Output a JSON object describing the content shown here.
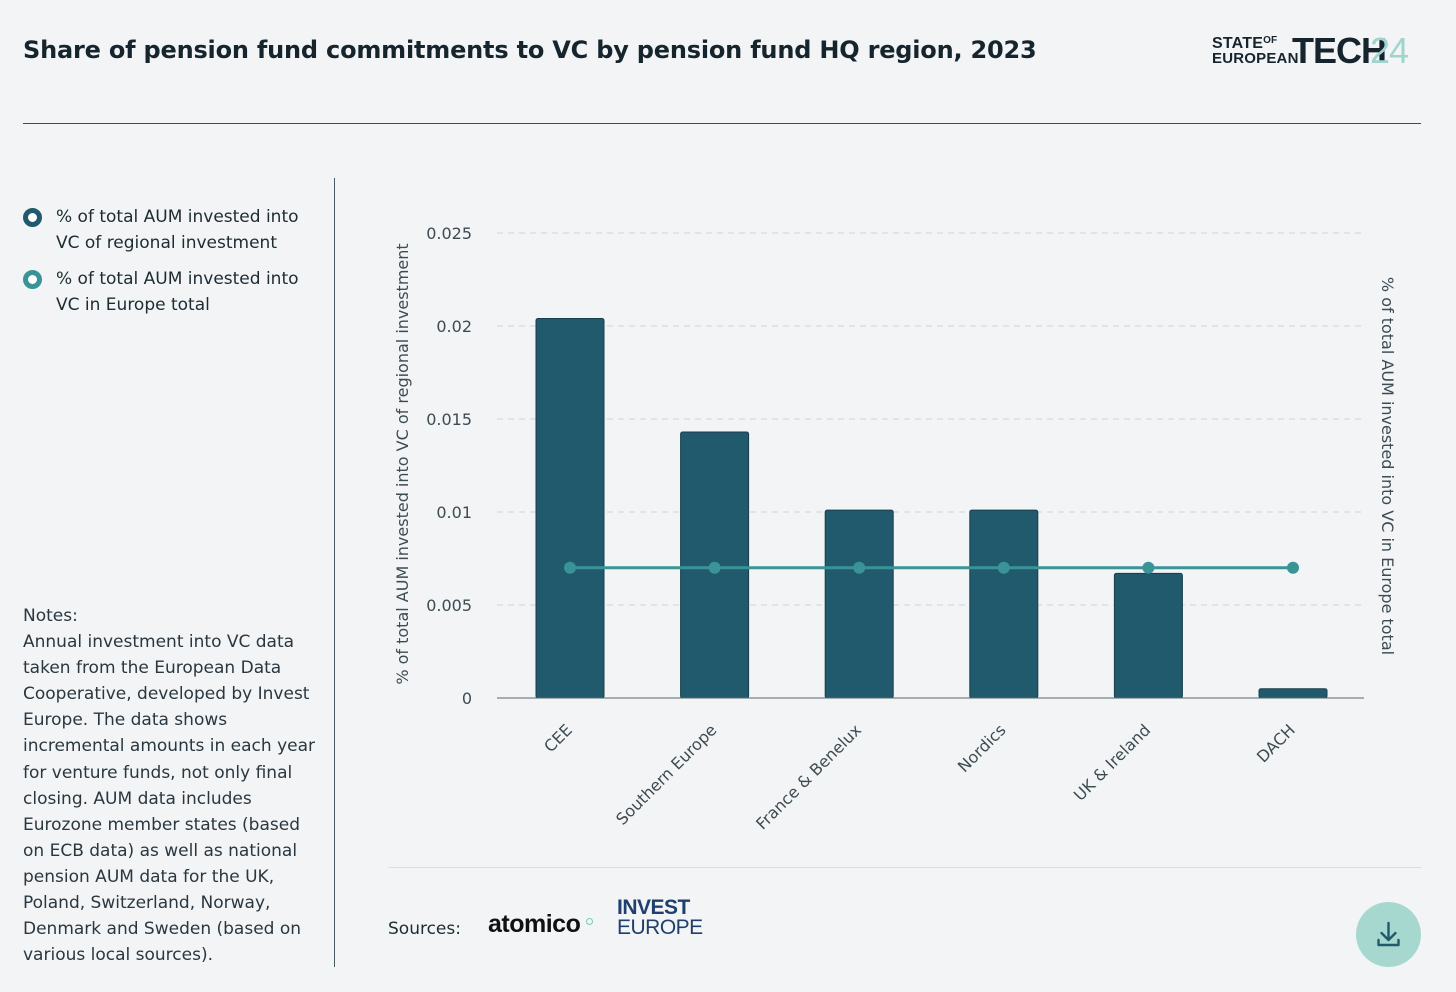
{
  "header": {
    "title": "Share of pension fund commitments to VC by pension fund HQ region, 2023",
    "brand_state": "STATE",
    "brand_of": "OF",
    "brand_european": "EUROPEAN",
    "brand_tech": "TECH",
    "brand_year": "24"
  },
  "legend": {
    "items": [
      {
        "label": "% of total AUM invested into VC of regional investment",
        "color": "#215a6c"
      },
      {
        "label": "% of total AUM invested into VC in Europe total",
        "color": "#3a9396"
      }
    ]
  },
  "notes": {
    "heading": "Notes:",
    "text": "Annual investment into VC data taken from the European Data Cooperative, developed by Invest Europe. The data shows incremental amounts in each year for venture funds, not only final closing. AUM data includes Eurozone member states (based on ECB data) as well as national pension AUM data for the UK, Poland, Switzerland, Norway, Denmark and Sweden (based on various local sources)."
  },
  "chart_data": {
    "type": "bar",
    "categories": [
      "CEE",
      "Southern Europe",
      "France & Benelux",
      "Nordics",
      "UK & Ireland",
      "DACH"
    ],
    "series": [
      {
        "name": "% of total AUM invested into VC of regional investment",
        "type": "bar",
        "color": "#215a6c",
        "values": [
          0.0204,
          0.0143,
          0.0101,
          0.0101,
          0.0067,
          0.0005
        ]
      },
      {
        "name": "% of total AUM invested into VC in Europe total",
        "type": "line",
        "color": "#3a9396",
        "values": [
          0.007,
          0.007,
          0.007,
          0.007,
          0.007,
          0.007
        ]
      }
    ],
    "y_ticks": [
      "0",
      "0.005",
      "0.01",
      "0.015",
      "0.02",
      "0.025"
    ],
    "ylim": [
      0,
      0.025
    ],
    "ylabel": "% of total AUM invested into VC of regional investment",
    "ylabel_right": "% of total AUM invested into VC in Europe total",
    "xlabel": "",
    "grid": true
  },
  "footer": {
    "sources_label": "Sources:",
    "source_1": "atomico",
    "source_2_line1": "INVEST",
    "source_2_line2": "EUROPE",
    "download_icon": "download-icon"
  }
}
